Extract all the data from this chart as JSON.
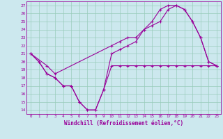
{
  "xlabel": "Windchill (Refroidissement éolien,°C)",
  "bg_color": "#cce8ee",
  "line_color": "#990099",
  "grid_color": "#99ccbb",
  "xlim": [
    -0.5,
    23.5
  ],
  "ylim": [
    13.5,
    27.5
  ],
  "yticks": [
    14,
    15,
    16,
    17,
    18,
    19,
    20,
    21,
    22,
    23,
    24,
    25,
    26,
    27
  ],
  "xticks": [
    0,
    1,
    2,
    3,
    4,
    5,
    6,
    7,
    8,
    9,
    10,
    11,
    12,
    13,
    14,
    15,
    16,
    17,
    18,
    19,
    20,
    21,
    22,
    23
  ],
  "line1_x": [
    0,
    1,
    2,
    3,
    4,
    5,
    6,
    7,
    8,
    9,
    10,
    11,
    12,
    13,
    14,
    15,
    16,
    17,
    18,
    19,
    20,
    21,
    22,
    23
  ],
  "line1_y": [
    21,
    20,
    18.5,
    18,
    17,
    17,
    15,
    14,
    14,
    16.5,
    19.5,
    19.5,
    19.5,
    19.5,
    19.5,
    19.5,
    19.5,
    19.5,
    19.5,
    19.5,
    19.5,
    19.5,
    19.5,
    19.5
  ],
  "line2_x": [
    0,
    1,
    2,
    3,
    4,
    5,
    6,
    7,
    8,
    9,
    10,
    11,
    12,
    13,
    14,
    15,
    16,
    17,
    18,
    19,
    20,
    21,
    22,
    23
  ],
  "line2_y": [
    21,
    20,
    18.5,
    18,
    17,
    17,
    15,
    14,
    14,
    16.5,
    21,
    21.5,
    22,
    22.5,
    24,
    24.5,
    25,
    26.5,
    27,
    26.5,
    25,
    23,
    20,
    19.5
  ],
  "line3_x": [
    0,
    2,
    3,
    10,
    11,
    12,
    13,
    14,
    15,
    16,
    17,
    18,
    19,
    20,
    21,
    22,
    23
  ],
  "line3_y": [
    21,
    19.5,
    18.5,
    22,
    22.5,
    23,
    23,
    24,
    25,
    26.5,
    27,
    27,
    26.5,
    25,
    23,
    20,
    19.5
  ]
}
